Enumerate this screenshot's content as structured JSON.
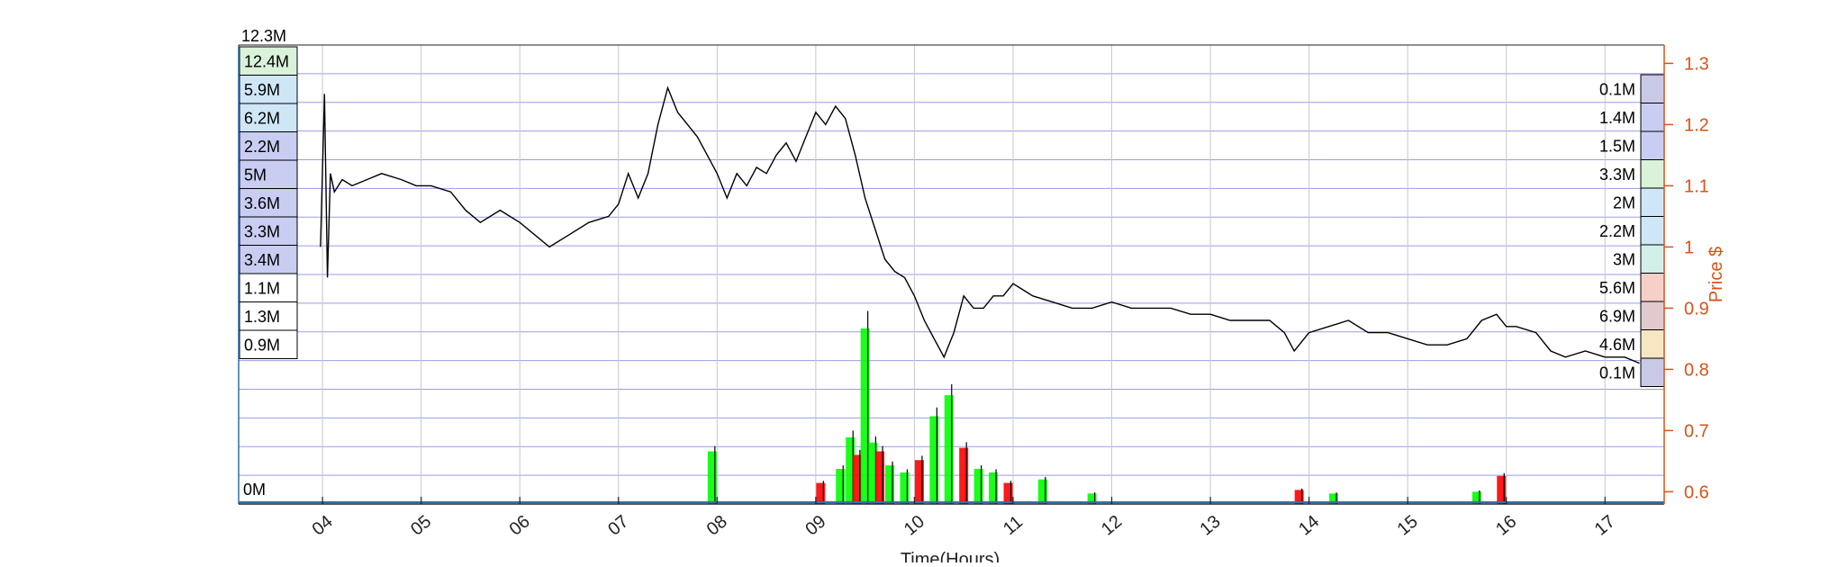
{
  "chart_data": {
    "type": "line",
    "title": "",
    "xlabel": "Time(Hours)",
    "ylabel_right": "Price $",
    "x_ticks": [
      "04",
      "05",
      "06",
      "07",
      "08",
      "09",
      "10",
      "11",
      "12",
      "13",
      "14",
      "15",
      "16",
      "17"
    ],
    "x_range": [
      3.15,
      17.6
    ],
    "y_right_ticks": [
      "0.6",
      "0.7",
      "0.8",
      "0.9",
      "1",
      "1.1",
      "1.2",
      "1.3"
    ],
    "y_range": [
      0.58,
      1.33
    ],
    "grid": true,
    "colors": {
      "price": "#000000",
      "right_axis": "#d95319",
      "grid_h": "#4a4ad8",
      "volume_up": "#00ff00",
      "volume_down": "#ff0000",
      "volume_line": "#000000"
    },
    "series": [
      {
        "values": [
          [
            3.98,
            1.0
          ],
          [
            4.02,
            1.25
          ],
          [
            4.05,
            0.95
          ],
          [
            4.08,
            1.12
          ],
          [
            4.12,
            1.09
          ],
          [
            4.2,
            1.11
          ],
          [
            4.3,
            1.1
          ],
          [
            4.45,
            1.11
          ],
          [
            4.6,
            1.12
          ],
          [
            4.8,
            1.11
          ],
          [
            4.95,
            1.1
          ],
          [
            5.1,
            1.1
          ],
          [
            5.3,
            1.09
          ],
          [
            5.45,
            1.06
          ],
          [
            5.6,
            1.04
          ],
          [
            5.8,
            1.06
          ],
          [
            6.0,
            1.04
          ],
          [
            6.15,
            1.02
          ],
          [
            6.3,
            1.0
          ],
          [
            6.5,
            1.02
          ],
          [
            6.7,
            1.04
          ],
          [
            6.9,
            1.05
          ],
          [
            7.0,
            1.07
          ],
          [
            7.1,
            1.12
          ],
          [
            7.2,
            1.08
          ],
          [
            7.3,
            1.12
          ],
          [
            7.4,
            1.2
          ],
          [
            7.5,
            1.26
          ],
          [
            7.6,
            1.22
          ],
          [
            7.7,
            1.2
          ],
          [
            7.8,
            1.18
          ],
          [
            7.9,
            1.15
          ],
          [
            8.0,
            1.12
          ],
          [
            8.1,
            1.08
          ],
          [
            8.2,
            1.12
          ],
          [
            8.3,
            1.1
          ],
          [
            8.4,
            1.13
          ],
          [
            8.5,
            1.12
          ],
          [
            8.6,
            1.15
          ],
          [
            8.7,
            1.17
          ],
          [
            8.8,
            1.14
          ],
          [
            8.9,
            1.18
          ],
          [
            9.0,
            1.22
          ],
          [
            9.1,
            1.2
          ],
          [
            9.2,
            1.23
          ],
          [
            9.3,
            1.21
          ],
          [
            9.4,
            1.15
          ],
          [
            9.5,
            1.08
          ],
          [
            9.6,
            1.03
          ],
          [
            9.7,
            0.98
          ],
          [
            9.8,
            0.96
          ],
          [
            9.9,
            0.95
          ],
          [
            10.0,
            0.92
          ],
          [
            10.1,
            0.88
          ],
          [
            10.2,
            0.85
          ],
          [
            10.3,
            0.82
          ],
          [
            10.4,
            0.86
          ],
          [
            10.5,
            0.92
          ],
          [
            10.6,
            0.9
          ],
          [
            10.7,
            0.9
          ],
          [
            10.8,
            0.92
          ],
          [
            10.9,
            0.92
          ],
          [
            11.0,
            0.94
          ],
          [
            11.1,
            0.93
          ],
          [
            11.2,
            0.92
          ],
          [
            11.4,
            0.91
          ],
          [
            11.6,
            0.9
          ],
          [
            11.8,
            0.9
          ],
          [
            12.0,
            0.91
          ],
          [
            12.2,
            0.9
          ],
          [
            12.4,
            0.9
          ],
          [
            12.6,
            0.9
          ],
          [
            12.8,
            0.89
          ],
          [
            13.0,
            0.89
          ],
          [
            13.2,
            0.88
          ],
          [
            13.4,
            0.88
          ],
          [
            13.6,
            0.88
          ],
          [
            13.75,
            0.86
          ],
          [
            13.85,
            0.83
          ],
          [
            14.0,
            0.86
          ],
          [
            14.2,
            0.87
          ],
          [
            14.4,
            0.88
          ],
          [
            14.6,
            0.86
          ],
          [
            14.8,
            0.86
          ],
          [
            15.0,
            0.85
          ],
          [
            15.2,
            0.84
          ],
          [
            15.4,
            0.84
          ],
          [
            15.6,
            0.85
          ],
          [
            15.75,
            0.88
          ],
          [
            15.9,
            0.89
          ],
          [
            16.0,
            0.87
          ],
          [
            16.1,
            0.87
          ],
          [
            16.3,
            0.86
          ],
          [
            16.45,
            0.83
          ],
          [
            16.6,
            0.82
          ],
          [
            16.8,
            0.83
          ],
          [
            17.0,
            0.82
          ],
          [
            17.2,
            0.82
          ],
          [
            17.35,
            0.81
          ]
        ]
      }
    ],
    "volume_bars": [
      {
        "x": 7.95,
        "h": 0.3
      },
      {
        "x": 9.05,
        "h": 0.12
      },
      {
        "x": 9.25,
        "h": 0.2
      },
      {
        "x": 9.35,
        "h": 0.38
      },
      {
        "x": 9.42,
        "h": 0.28
      },
      {
        "x": 9.5,
        "h": 1.0
      },
      {
        "x": 9.58,
        "h": 0.35
      },
      {
        "x": 9.65,
        "h": 0.3
      },
      {
        "x": 9.75,
        "h": 0.22
      },
      {
        "x": 9.9,
        "h": 0.18
      },
      {
        "x": 10.05,
        "h": 0.25
      },
      {
        "x": 10.2,
        "h": 0.5
      },
      {
        "x": 10.35,
        "h": 0.62
      },
      {
        "x": 10.5,
        "h": 0.32
      },
      {
        "x": 10.65,
        "h": 0.2
      },
      {
        "x": 10.8,
        "h": 0.18
      },
      {
        "x": 10.95,
        "h": 0.12
      },
      {
        "x": 11.3,
        "h": 0.14
      },
      {
        "x": 11.8,
        "h": 0.06
      },
      {
        "x": 13.9,
        "h": 0.08
      },
      {
        "x": 14.25,
        "h": 0.06
      },
      {
        "x": 15.7,
        "h": 0.07
      },
      {
        "x": 15.95,
        "h": 0.16
      }
    ],
    "volume_profile_left": [
      {
        "label": "12.4M",
        "fill": "#d9f2d9"
      },
      {
        "label": "5.9M",
        "fill": "#cfe6f7"
      },
      {
        "label": "6.2M",
        "fill": "#cfe6f7"
      },
      {
        "label": "2.2M",
        "fill": "#c9cdf2"
      },
      {
        "label": "5M",
        "fill": "#c9cdf2"
      },
      {
        "label": "3.6M",
        "fill": "#c9cdf2"
      },
      {
        "label": "3.3M",
        "fill": "#c9cdf2"
      },
      {
        "label": "3.4M",
        "fill": "#c9cdf2"
      },
      {
        "label": "1.1M",
        "fill": "#ffffff"
      },
      {
        "label": "1.3M",
        "fill": "#ffffff"
      },
      {
        "label": "0.9M",
        "fill": "#ffffff"
      }
    ],
    "volume_profile_right": [
      {
        "label": "0.1M",
        "fill": "#c9c9e6"
      },
      {
        "label": "1.4M",
        "fill": "#c9cdf2"
      },
      {
        "label": "1.5M",
        "fill": "#c9cdf2"
      },
      {
        "label": "3.3M",
        "fill": "#d9f2d9"
      },
      {
        "label": "2M",
        "fill": "#cfe6f7"
      },
      {
        "label": "2.2M",
        "fill": "#cfe6f7"
      },
      {
        "label": "3M",
        "fill": "#d2f0e8"
      },
      {
        "label": "5.6M",
        "fill": "#f7cfc9"
      },
      {
        "label": "6.9M",
        "fill": "#e0c9cf"
      },
      {
        "label": "4.6M",
        "fill": "#f7e6c2"
      },
      {
        "label": "0.1M",
        "fill": "#c9c9e6"
      }
    ],
    "annotations": {
      "top_left": "12.3M",
      "bottom_left": "0M"
    }
  }
}
